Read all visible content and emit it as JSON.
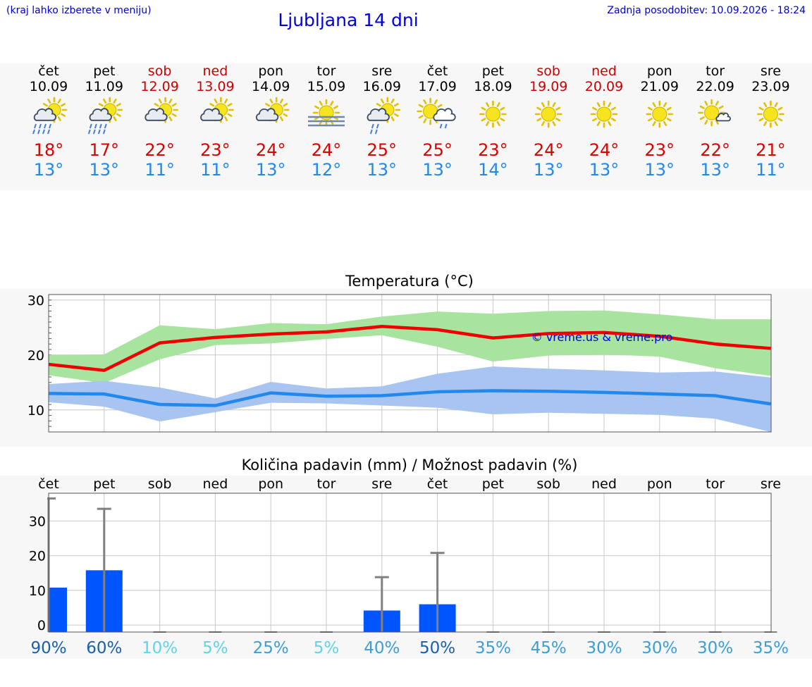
{
  "header": {
    "hint": "(kraj lahko izberete v meniju)",
    "title": "Ljubljana 14 dni",
    "updated": "Zadnja posodobitev: 10.09.2026 - 18:24"
  },
  "colors": {
    "link_blue": "#0000cc",
    "weekend_red": "#cc0000",
    "max_temp": "#dd0000",
    "min_temp": "#2288ee",
    "max_band": "#a8e4a0",
    "min_band": "#a8c4f0",
    "precip_bar": "#0055ff",
    "error_bar": "#808080"
  },
  "days": [
    {
      "wd": "čet",
      "date": "10.09",
      "weekend": false,
      "icon": "sun-cloud-heavy-rain-icon",
      "tmax": "18°",
      "tmin": "13°"
    },
    {
      "wd": "pet",
      "date": "11.09",
      "weekend": false,
      "icon": "sun-cloud-heavy-rain-icon",
      "tmax": "17°",
      "tmin": "13°"
    },
    {
      "wd": "sob",
      "date": "12.09",
      "weekend": true,
      "icon": "sun-cloud-icon",
      "tmax": "22°",
      "tmin": "11°"
    },
    {
      "wd": "ned",
      "date": "13.09",
      "weekend": true,
      "icon": "sun-cloud-icon",
      "tmax": "23°",
      "tmin": "11°"
    },
    {
      "wd": "pon",
      "date": "14.09",
      "weekend": false,
      "icon": "sun-cloud-icon",
      "tmax": "24°",
      "tmin": "13°"
    },
    {
      "wd": "tor",
      "date": "15.09",
      "weekend": false,
      "icon": "sun-fog-icon",
      "tmax": "24°",
      "tmin": "12°"
    },
    {
      "wd": "sre",
      "date": "16.09",
      "weekend": false,
      "icon": "sun-cloud-light-rain-icon",
      "tmax": "25°",
      "tmin": "13°"
    },
    {
      "wd": "čet",
      "date": "17.09",
      "weekend": false,
      "icon": "sun-rain-cloud-icon",
      "tmax": "25°",
      "tmin": "13°"
    },
    {
      "wd": "pet",
      "date": "18.09",
      "weekend": false,
      "icon": "sun-icon",
      "tmax": "23°",
      "tmin": "14°"
    },
    {
      "wd": "sob",
      "date": "19.09",
      "weekend": true,
      "icon": "sun-icon",
      "tmax": "24°",
      "tmin": "13°"
    },
    {
      "wd": "ned",
      "date": "20.09",
      "weekend": true,
      "icon": "sun-icon",
      "tmax": "24°",
      "tmin": "13°"
    },
    {
      "wd": "pon",
      "date": "21.09",
      "weekend": false,
      "icon": "sun-icon",
      "tmax": "23°",
      "tmin": "13°"
    },
    {
      "wd": "tor",
      "date": "22.09",
      "weekend": false,
      "icon": "sun-small-cloud-icon",
      "tmax": "22°",
      "tmin": "13°"
    },
    {
      "wd": "sre",
      "date": "23.09",
      "weekend": false,
      "icon": "sun-icon",
      "tmax": "21°",
      "tmin": "11°"
    }
  ],
  "chart_data": [
    {
      "type": "line",
      "title": "Temperatura (°C)",
      "ylim": [
        6,
        31
      ],
      "yticks": [
        10,
        20,
        30
      ],
      "grid": true,
      "watermark": "© vreme.us & vreme.pro",
      "x": [
        "10.09",
        "11.09",
        "12.09",
        "13.09",
        "14.09",
        "15.09",
        "16.09",
        "17.09",
        "18.09",
        "19.09",
        "20.09",
        "21.09",
        "22.09",
        "23.09"
      ],
      "series": [
        {
          "values": [
            18.3,
            17.2,
            22.2,
            23.2,
            23.8,
            24.2,
            25.2,
            24.6,
            23.1,
            23.9,
            24.1,
            23.4,
            22.0,
            21.2
          ]
        },
        {
          "values": [
            13.0,
            12.9,
            11.0,
            10.8,
            13.1,
            12.5,
            12.6,
            13.3,
            13.5,
            13.4,
            13.2,
            12.9,
            12.6,
            11.1
          ]
        }
      ],
      "bands": [
        {
          "low": [
            16.3,
            14.9,
            19.2,
            21.8,
            22.1,
            22.9,
            23.6,
            21.5,
            18.8,
            19.9,
            20.1,
            19.7,
            17.6,
            16.2
          ],
          "high": [
            20.0,
            20.1,
            25.4,
            24.7,
            25.8,
            25.6,
            27.0,
            27.9,
            27.5,
            28.0,
            28.1,
            27.4,
            26.5,
            26.5
          ]
        },
        {
          "low": [
            11.4,
            10.6,
            7.9,
            9.6,
            11.3,
            11.2,
            10.8,
            10.4,
            9.2,
            9.5,
            9.3,
            9.1,
            8.4,
            6.0
          ],
          "high": [
            14.7,
            15.3,
            14.1,
            12.1,
            15.1,
            13.9,
            14.3,
            16.6,
            17.9,
            17.5,
            17.2,
            16.8,
            17.0,
            15.9
          ]
        }
      ]
    },
    {
      "type": "bar",
      "title": "Količina padavin (mm) / Možnost padavin (%)",
      "ylim": [
        -2,
        38
      ],
      "yticks": [
        0,
        10,
        20,
        30
      ],
      "grid": true,
      "categories": [
        "čet",
        "pet",
        "sob",
        "ned",
        "pon",
        "tor",
        "sre",
        "čet",
        "pet",
        "sob",
        "ned",
        "pon",
        "tor",
        "sre"
      ],
      "values": [
        10.8,
        15.8,
        0,
        0,
        0,
        0,
        4.2,
        6.0,
        0,
        0,
        0,
        0,
        0,
        0
      ],
      "error_high": [
        36.5,
        33.5,
        0,
        0,
        0,
        0,
        13.8,
        20.8,
        0,
        0,
        0,
        0,
        0,
        0
      ],
      "probability": [
        "90%",
        "60%",
        "10%",
        "5%",
        "25%",
        "5%",
        "40%",
        "50%",
        "35%",
        "45%",
        "30%",
        "30%",
        "30%",
        "35%"
      ],
      "probability_colors": [
        "#1560b0",
        "#1560b0",
        "#5fd4e8",
        "#5fd4e8",
        "#3a9ed8",
        "#5fd4e8",
        "#3a9ed8",
        "#1560b0",
        "#3a9ed8",
        "#3a9ed8",
        "#3a9ed8",
        "#3a9ed8",
        "#3a9ed8",
        "#3a9ed8"
      ]
    }
  ]
}
